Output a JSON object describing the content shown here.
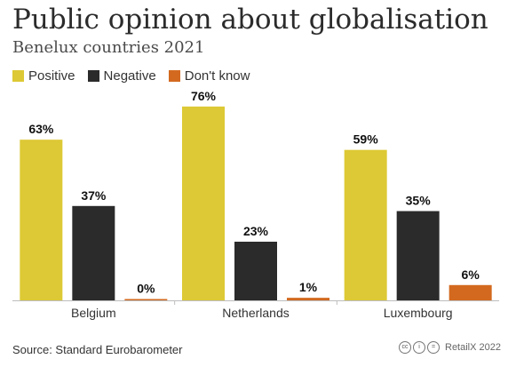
{
  "chart_data": {
    "type": "bar",
    "title": "Public opinion about globalisation",
    "subtitle": "Benelux countries 2021",
    "categories": [
      "Belgium",
      "Netherlands",
      "Luxembourg"
    ],
    "series": [
      {
        "name": "Positive",
        "values": [
          63,
          76,
          59
        ],
        "color": "#ddc935"
      },
      {
        "name": "Negative",
        "values": [
          37,
          23,
          35
        ],
        "color": "#2b2b2b"
      },
      {
        "name": "Don't know",
        "values": [
          0,
          1,
          6
        ],
        "color": "#d3691f"
      }
    ],
    "value_suffix": "%",
    "ylim": [
      0,
      80
    ],
    "grid": false,
    "legend_position": "top-left",
    "source": "Source: Standard Eurobarometer"
  },
  "footer": {
    "credit": "RetailX 2022",
    "cc_icons": [
      "cc-icon",
      "by-icon",
      "nd-icon"
    ]
  }
}
